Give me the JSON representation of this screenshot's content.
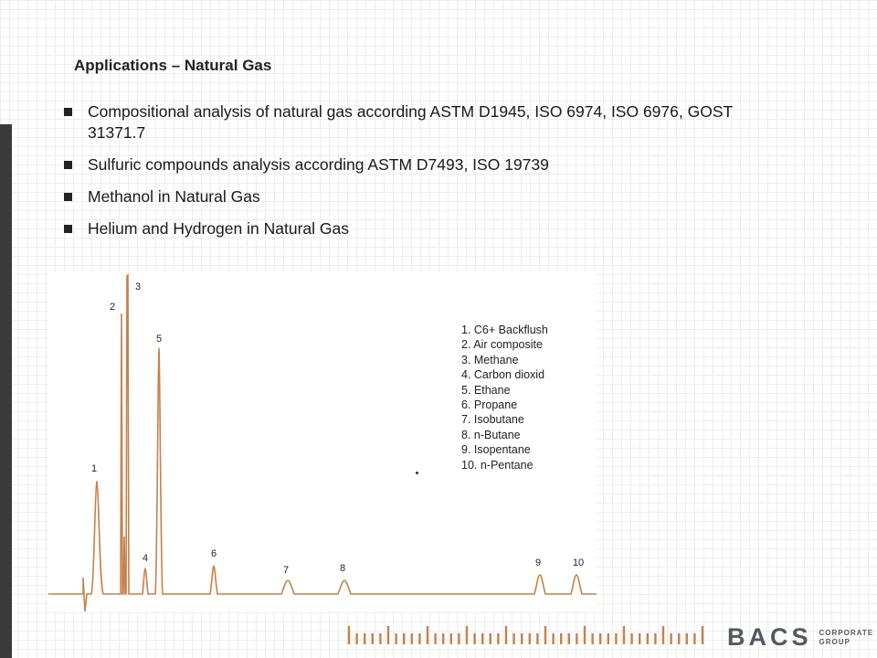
{
  "slide": {
    "title": "Applications – Natural Gas",
    "bullets": [
      "Compositional analysis of natural gas according ASTM D1945, ISO 6974, ISO 6976, GOST 31371.7",
      "Sulfuric compounds analysis according ASTM D7493, ISO 19739",
      "Methanol in Natural Gas",
      "Helium and Hydrogen in Natural Gas"
    ]
  },
  "chromatogram": {
    "peak_labels": [
      "1",
      "2",
      "3",
      "4",
      "5",
      "6",
      "7",
      "8",
      "9",
      "10"
    ],
    "legend": [
      "1. C6+ Backflush",
      "2. Air composite",
      "3. Methane",
      "4. Carbon dioxid",
      "5. Ethane",
      "6. Propane",
      "7. Isobutane",
      "8. n-Butane",
      "9. Isopentane",
      "10. n-Pentane"
    ],
    "trace_color": "#c8804a"
  },
  "brand": {
    "name": "BACS",
    "sub_line1": "CORPORATE",
    "sub_line2": "GROUP",
    "color": "#555a60",
    "tick_color": "#c8804a"
  }
}
